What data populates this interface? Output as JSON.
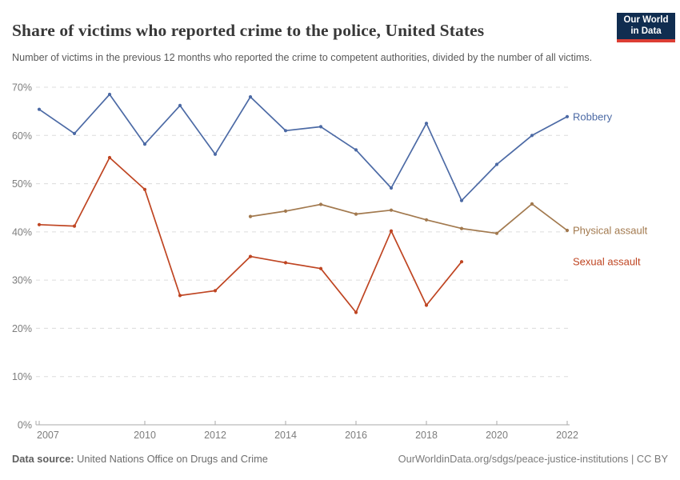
{
  "header": {
    "title": "Share of victims who reported crime to the police, United States",
    "subtitle": "Number of victims in the previous 12 months who reported the crime to competent authorities, divided by the number of all victims.",
    "logo": {
      "line1": "Our World",
      "line2": "in Data",
      "bg_color": "#102d50",
      "accent_color": "#dc3e34"
    }
  },
  "chart_data": {
    "type": "line",
    "title": "Share of victims who reported crime to the police, United States",
    "xlabel": "",
    "ylabel": "",
    "xlim": [
      2007,
      2022
    ],
    "ylim": [
      0,
      70
    ],
    "yticks": [
      0,
      10,
      20,
      30,
      40,
      50,
      60,
      70
    ],
    "ytick_suffix": "%",
    "xticks": [
      2007,
      2010,
      2012,
      2014,
      2016,
      2018,
      2020,
      2022
    ],
    "grid": true,
    "grid_style": "dashed",
    "legend_position": "end-of-line-labels-right",
    "series": [
      {
        "name": "Robbery",
        "color": "#4c6aa5",
        "x": [
          2007,
          2008,
          2009,
          2010,
          2011,
          2012,
          2013,
          2014,
          2015,
          2016,
          2017,
          2018,
          2019,
          2020,
          2021,
          2022
        ],
        "values": [
          65.4,
          60.4,
          68.5,
          58.2,
          66.2,
          56.1,
          68.0,
          61.0,
          61.8,
          57.0,
          49.1,
          62.5,
          46.5,
          54.0,
          60.0,
          63.9
        ]
      },
      {
        "name": "Physical assault",
        "color": "#a2794e",
        "x": [
          2013,
          2014,
          2015,
          2016,
          2017,
          2018,
          2019,
          2020,
          2021,
          2022
        ],
        "values": [
          43.2,
          44.3,
          45.7,
          43.7,
          44.5,
          42.5,
          40.7,
          39.7,
          45.8,
          40.3
        ]
      },
      {
        "name": "Sexual assault",
        "color": "#bf4522",
        "x": [
          2007,
          2008,
          2009,
          2010,
          2011,
          2012,
          2013,
          2014,
          2015,
          2016,
          2017,
          2018,
          2019
        ],
        "values": [
          41.5,
          41.2,
          55.4,
          48.8,
          26.8,
          27.8,
          34.9,
          33.6,
          32.4,
          23.3,
          40.2,
          24.8,
          33.8
        ]
      }
    ]
  },
  "footer": {
    "source_label": "Data source:",
    "source_value": "United Nations Office on Drugs and Crime",
    "attribution": "OurWorldinData.org/sdgs/peace-justice-institutions | CC BY"
  }
}
